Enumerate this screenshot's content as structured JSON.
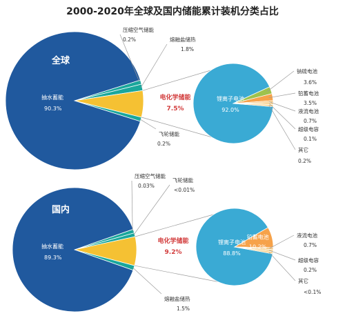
{
  "title": "2000-2020年全球及国内储能累计装机分类占比",
  "colors": {
    "pumped_hydro": "#20599e",
    "electrochem": "#f5c133",
    "flywheel": "#1aa79c",
    "pie_edge": "#ffffff",
    "li_ion": "#3aaad4",
    "nas": "#9ec24d",
    "lead_acid": "#f6a24a",
    "flow": "#f2c276",
    "other_small": "#f7d08a",
    "leader": "#9a9a9a",
    "chem_label": "#d23b3b"
  },
  "chart_data": [
    {
      "type": "pie",
      "panel": "global",
      "title": "全球",
      "slices": [
        {
          "label": "抽水蓄能",
          "value": 90.3,
          "text": "90.3%"
        },
        {
          "label": "压缩空气储能",
          "value": 0.2,
          "text": "0.2%"
        },
        {
          "label": "熔融盐储热",
          "value": 1.8,
          "text": "1.8%"
        },
        {
          "label": "电化学储能",
          "value": 7.5,
          "text": "7.5%"
        },
        {
          "label": "飞轮储能",
          "value": 0.2,
          "text": "0.2%"
        }
      ],
      "breakdown": {
        "parent": "电化学储能",
        "slices": [
          {
            "label": "锂离子电池",
            "value": 92.0,
            "text": "92.0%"
          },
          {
            "label": "钠硫电池",
            "value": 3.6,
            "text": "3.6%"
          },
          {
            "label": "铅蓄电池",
            "value": 3.5,
            "text": "3.5%"
          },
          {
            "label": "液流电池",
            "value": 0.7,
            "text": "0.7%"
          },
          {
            "label": "超级电容",
            "value": 0.1,
            "text": "0.1%"
          },
          {
            "label": "其它",
            "value": 0.2,
            "text": "0.2%"
          }
        ]
      }
    },
    {
      "type": "pie",
      "panel": "domestic",
      "title": "国内",
      "slices": [
        {
          "label": "抽水蓄能",
          "value": 89.3,
          "text": "89.3%"
        },
        {
          "label": "压缩空气储能",
          "value": 0.03,
          "text": "0.03%"
        },
        {
          "label": "飞轮储能",
          "value": 0.01,
          "text": "<0.01%"
        },
        {
          "label": "电化学储能",
          "value": 9.2,
          "text": "9.2%"
        },
        {
          "label": "熔融盐储热",
          "value": 1.5,
          "text": "1.5%"
        }
      ],
      "breakdown": {
        "parent": "电化学储能",
        "slices": [
          {
            "label": "锂离子电池",
            "value": 88.8,
            "text": "88.8%"
          },
          {
            "label": "铅蓄电池",
            "value": 10.2,
            "text": "10.2%"
          },
          {
            "label": "液流电池",
            "value": 0.7,
            "text": "0.7%"
          },
          {
            "label": "超级电容",
            "value": 0.2,
            "text": "0.2%"
          },
          {
            "label": "其它",
            "value": 0.1,
            "text": "<0.1%"
          }
        ]
      }
    }
  ]
}
